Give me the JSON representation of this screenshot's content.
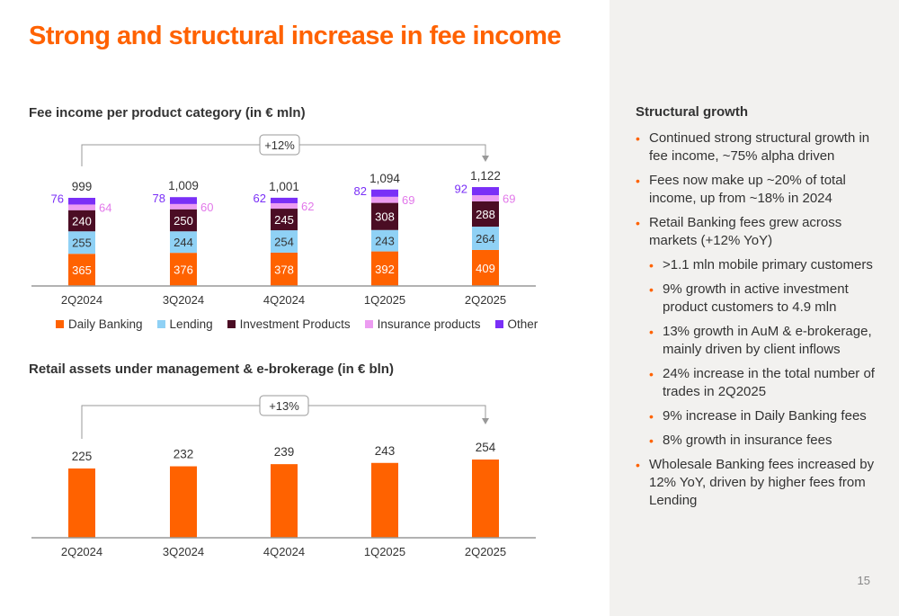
{
  "page": {
    "title": "Strong and structural increase in fee income",
    "page_number": "15"
  },
  "side_panel": {
    "heading": "Structural growth",
    "bullets": [
      {
        "level": 1,
        "text": "Continued strong structural growth in fee income, ~75% alpha driven"
      },
      {
        "level": 1,
        "text": "Fees now make up ~20% of total income, up from ~18% in 2024"
      },
      {
        "level": 1,
        "text": "Retail Banking fees grew across markets (+12% YoY)"
      },
      {
        "level": 2,
        "text": ">1.1 mln mobile primary customers"
      },
      {
        "level": 2,
        "text": "9% growth in active investment product customers to 4.9 mln"
      },
      {
        "level": 2,
        "text": "13% growth in AuM & e-brokerage, mainly driven by client inflows"
      },
      {
        "level": 2,
        "text": "24% increase in the total number of trades in 2Q2025"
      },
      {
        "level": 2,
        "text": "9% increase in Daily Banking fees"
      },
      {
        "level": 2,
        "text": "8% growth in insurance fees"
      },
      {
        "level": 1,
        "text": "Wholesale Banking fees increased by 12% YoY, driven by higher fees from Lending"
      }
    ]
  },
  "colors": {
    "accent": "#ff6200",
    "daily_banking": "#ff6200",
    "lending": "#8fd1f5",
    "investment_products": "#4b0d24",
    "insurance_products": "#ec9cf1",
    "other": "#7a2ff7",
    "panel_bg": "#f2f1ef"
  },
  "chart_data": [
    {
      "type": "bar",
      "stacked": true,
      "title": "Fee income per product category (in € mln)",
      "categories": [
        "2Q2024",
        "3Q2024",
        "4Q2024",
        "1Q2025",
        "2Q2025"
      ],
      "series": [
        {
          "name": "Daily Banking",
          "color": "#ff6200",
          "values": [
            365,
            376,
            378,
            392,
            409
          ]
        },
        {
          "name": "Lending",
          "color": "#8fd1f5",
          "values": [
            255,
            244,
            254,
            243,
            264
          ]
        },
        {
          "name": "Investment Products",
          "color": "#4b0d24",
          "values": [
            240,
            250,
            245,
            308,
            288
          ]
        },
        {
          "name": "Insurance products",
          "color": "#ec9cf1",
          "values": [
            64,
            60,
            62,
            69,
            69
          ]
        },
        {
          "name": "Other",
          "color": "#7a2ff7",
          "values": [
            76,
            78,
            62,
            82,
            92
          ]
        }
      ],
      "totals": [
        "999",
        "1,009",
        "1,001",
        "1,094",
        "1,122"
      ],
      "growth_annotation": "+12%",
      "legend": "bottom"
    },
    {
      "type": "bar",
      "title": "Retail assets under management & e-brokerage (in € bln)",
      "categories": [
        "2Q2024",
        "3Q2024",
        "4Q2024",
        "1Q2025",
        "2Q2025"
      ],
      "values": [
        225,
        232,
        239,
        243,
        254
      ],
      "growth_annotation": "+13%"
    }
  ]
}
